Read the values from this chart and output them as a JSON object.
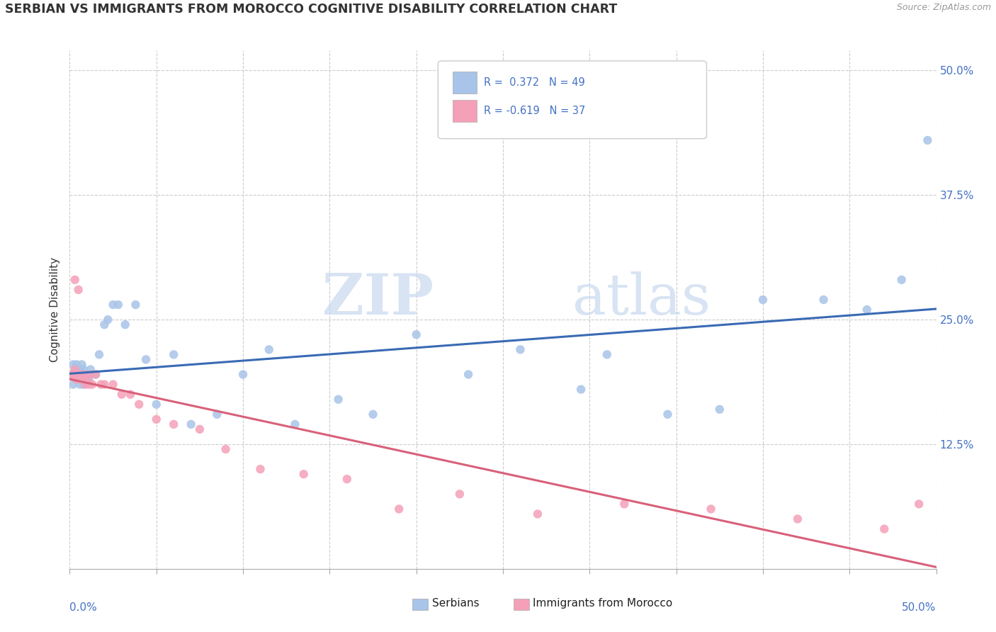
{
  "title": "SERBIAN VS IMMIGRANTS FROM MOROCCO COGNITIVE DISABILITY CORRELATION CHART",
  "source": "Source: ZipAtlas.com",
  "ylabel": "Cognitive Disability",
  "y_tick_values": [
    0.125,
    0.25,
    0.375,
    0.5
  ],
  "y_tick_labels": [
    "12.5%",
    "25.0%",
    "37.5%",
    "50.0%"
  ],
  "xlim": [
    0.0,
    0.5
  ],
  "ylim": [
    0.0,
    0.52
  ],
  "blue_color": "#A8C4E8",
  "pink_color": "#F4A0B8",
  "blue_line_color": "#3A6AB5",
  "pink_line_color": "#D9607A",
  "watermark_zip": "ZIP",
  "watermark_atlas": "atlas",
  "serbian_x": [
    0.001,
    0.002,
    0.002,
    0.003,
    0.003,
    0.004,
    0.004,
    0.005,
    0.005,
    0.006,
    0.006,
    0.007,
    0.007,
    0.008,
    0.008,
    0.009,
    0.01,
    0.011,
    0.012,
    0.015,
    0.017,
    0.02,
    0.022,
    0.025,
    0.028,
    0.032,
    0.038,
    0.044,
    0.05,
    0.06,
    0.07,
    0.085,
    0.1,
    0.115,
    0.13,
    0.155,
    0.175,
    0.2,
    0.23,
    0.26,
    0.295,
    0.31,
    0.345,
    0.375,
    0.4,
    0.435,
    0.46,
    0.48,
    0.495
  ],
  "serbian_y": [
    0.195,
    0.185,
    0.205,
    0.2,
    0.195,
    0.19,
    0.205,
    0.195,
    0.2,
    0.185,
    0.2,
    0.195,
    0.205,
    0.185,
    0.2,
    0.195,
    0.195,
    0.19,
    0.2,
    0.195,
    0.215,
    0.245,
    0.25,
    0.265,
    0.265,
    0.245,
    0.265,
    0.21,
    0.165,
    0.215,
    0.145,
    0.155,
    0.195,
    0.22,
    0.145,
    0.17,
    0.155,
    0.235,
    0.195,
    0.22,
    0.18,
    0.215,
    0.155,
    0.16,
    0.27,
    0.27,
    0.26,
    0.29,
    0.43
  ],
  "morocco_x": [
    0.001,
    0.002,
    0.003,
    0.003,
    0.004,
    0.005,
    0.005,
    0.006,
    0.007,
    0.008,
    0.009,
    0.01,
    0.011,
    0.012,
    0.013,
    0.015,
    0.018,
    0.02,
    0.025,
    0.03,
    0.035,
    0.04,
    0.05,
    0.06,
    0.075,
    0.09,
    0.11,
    0.135,
    0.16,
    0.19,
    0.225,
    0.27,
    0.32,
    0.37,
    0.42,
    0.47,
    0.49
  ],
  "morocco_y": [
    0.195,
    0.195,
    0.29,
    0.2,
    0.19,
    0.28,
    0.195,
    0.195,
    0.19,
    0.195,
    0.185,
    0.19,
    0.185,
    0.195,
    0.185,
    0.195,
    0.185,
    0.185,
    0.185,
    0.175,
    0.175,
    0.165,
    0.15,
    0.145,
    0.14,
    0.12,
    0.1,
    0.095,
    0.09,
    0.06,
    0.075,
    0.055,
    0.065,
    0.06,
    0.05,
    0.04,
    0.065
  ]
}
